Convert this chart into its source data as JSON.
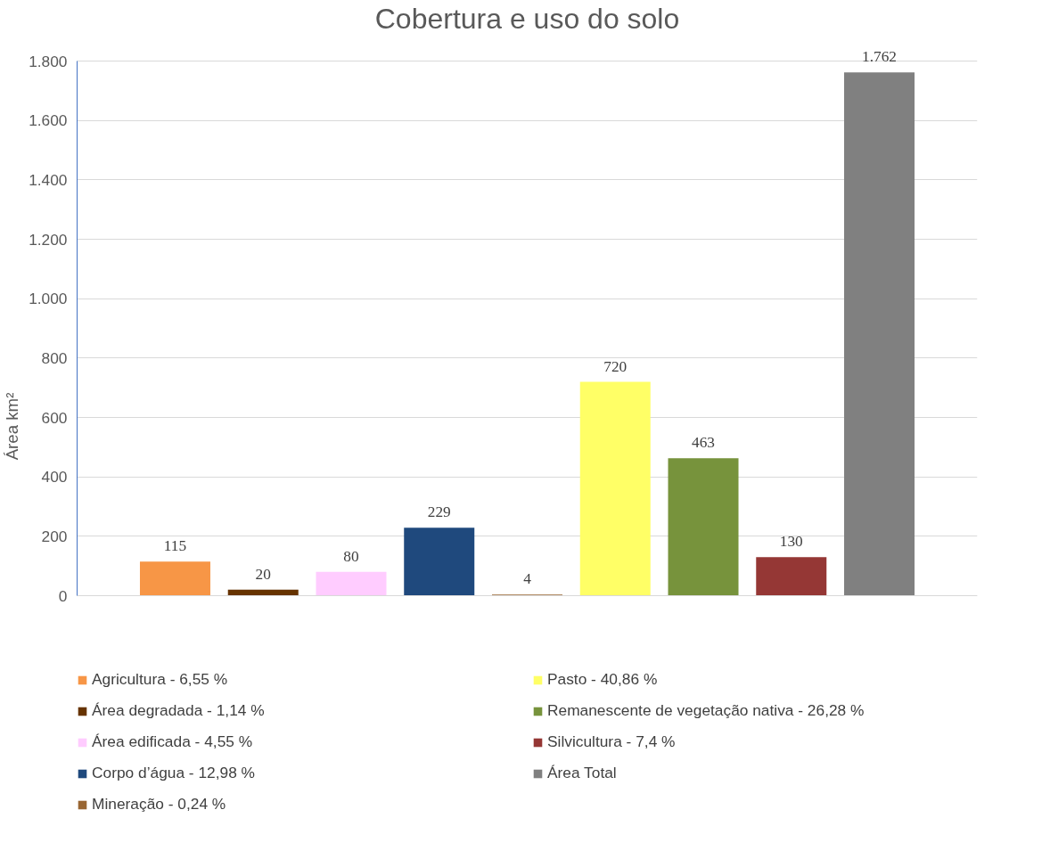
{
  "chart_data": {
    "type": "bar",
    "title": "Cobertura e uso do solo",
    "ylabel": "Área km²",
    "categories": [
      null
    ],
    "series": [
      {
        "name": "Agricultura - 6,55 %",
        "color": "#f79646",
        "values": [
          115
        ],
        "value_labels": [
          "115"
        ]
      },
      {
        "name": "Área degradada - 1,14 %",
        "color": "#663300",
        "values": [
          20
        ],
        "value_labels": [
          "20"
        ]
      },
      {
        "name": "Área edificada - 4,55 %",
        "color": "#ffccff",
        "values": [
          80
        ],
        "value_labels": [
          "80"
        ]
      },
      {
        "name": "Corpo d’água - 12,98 %",
        "color": "#1f497d",
        "values": [
          229
        ],
        "value_labels": [
          "229"
        ]
      },
      {
        "name": "Mineração - 0,24 %",
        "color": "#996633",
        "values": [
          4
        ],
        "value_labels": [
          "4"
        ]
      },
      {
        "name": "Pasto - 40,86 %",
        "color": "#ffff66",
        "values": [
          720
        ],
        "value_labels": [
          "720"
        ]
      },
      {
        "name": "Remanescente de vegetação nativa - 26,28 %",
        "color": "#77933c",
        "values": [
          463
        ],
        "value_labels": [
          "463"
        ]
      },
      {
        "name": "Silvicultura - 7,4 %",
        "color": "#953735",
        "values": [
          130
        ],
        "value_labels": [
          "130"
        ]
      },
      {
        "name": "Área Total",
        "color": "#808080",
        "values": [
          1762
        ],
        "value_labels": [
          "1.762"
        ]
      }
    ],
    "ylim": [
      0,
      1800
    ],
    "yticks": [
      0,
      200,
      400,
      600,
      800,
      {
        "value": 1000,
        "label": "1.000"
      },
      {
        "value": 1200,
        "label": "1.200"
      },
      {
        "value": 1400,
        "label": "1.400"
      },
      {
        "value": 1600,
        "label": "1.600"
      },
      {
        "value": 1800,
        "label": "1.800"
      }
    ],
    "grid": "y",
    "legend": "bottom"
  }
}
